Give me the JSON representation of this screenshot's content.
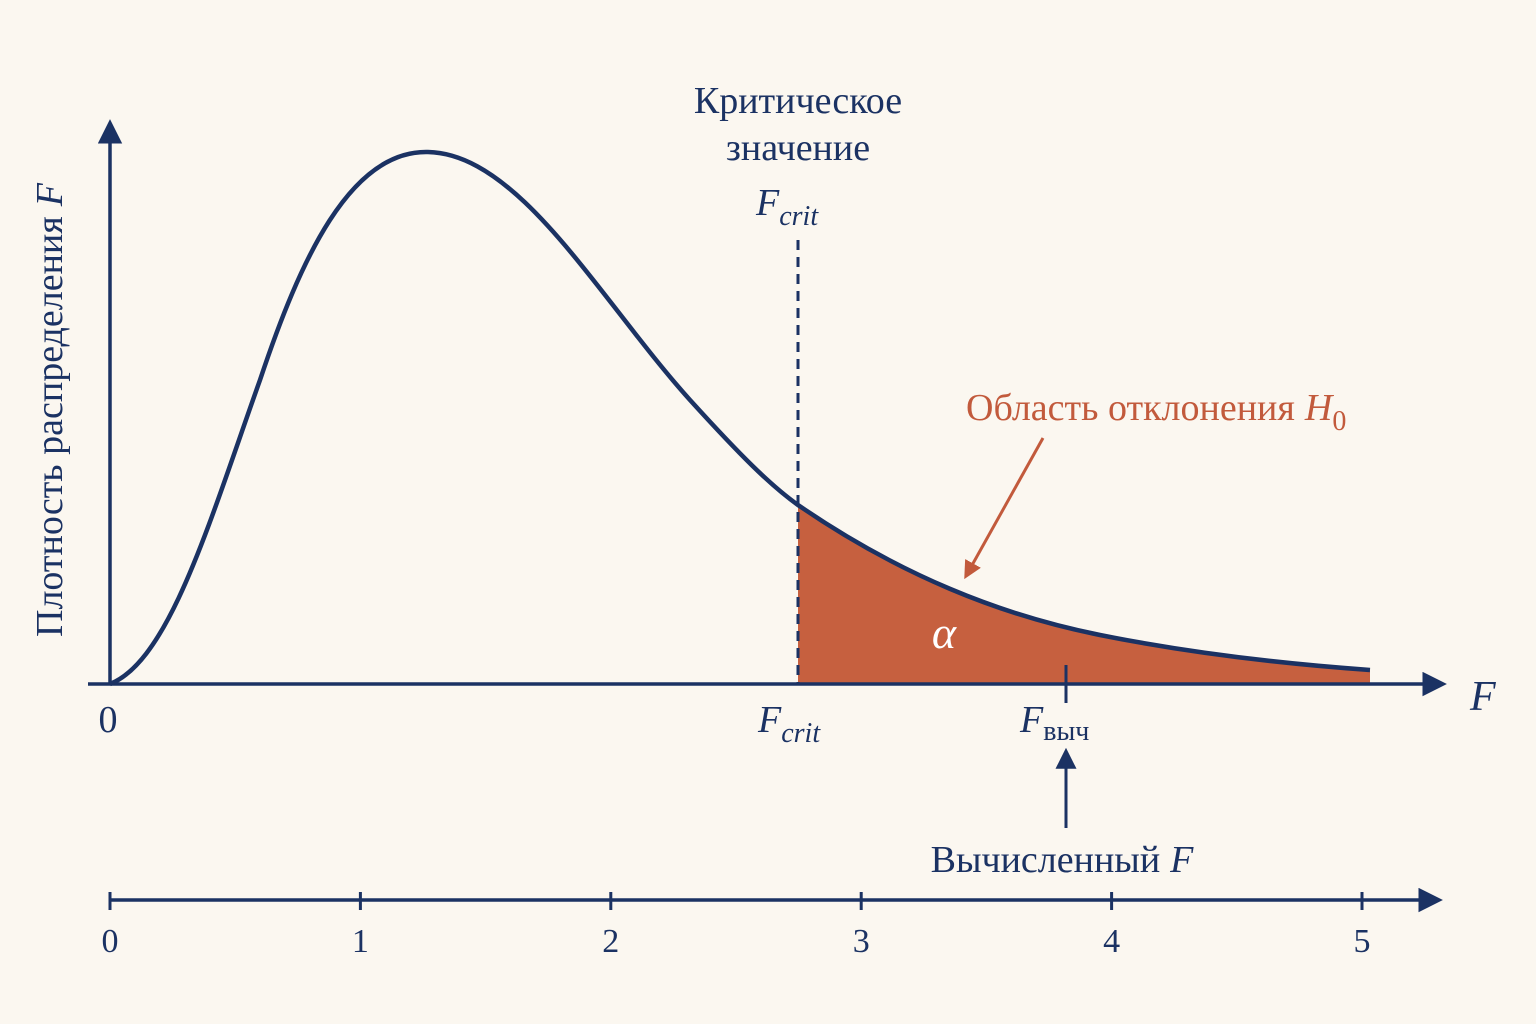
{
  "critical_label": {
    "lines": [
      "Критическое",
      "значение"
    ]
  },
  "f_crit": {
    "symbol": "F",
    "subscript": "crit"
  },
  "rejection_region": {
    "text": "Область отклонения",
    "symbol": "H",
    "subscript": "0"
  },
  "y_axis": {
    "text": "Плотность распределения",
    "symbol": "F"
  },
  "x_axis": {
    "symbol": "F",
    "origin": "0"
  },
  "alpha": "α",
  "f_calc": {
    "symbol": "F",
    "subscript": "выч"
  },
  "calc_label": {
    "text": "Вычисленный",
    "symbol": "F"
  },
  "scale": {
    "ticks": [
      0,
      1,
      2,
      3,
      4,
      5
    ]
  }
}
